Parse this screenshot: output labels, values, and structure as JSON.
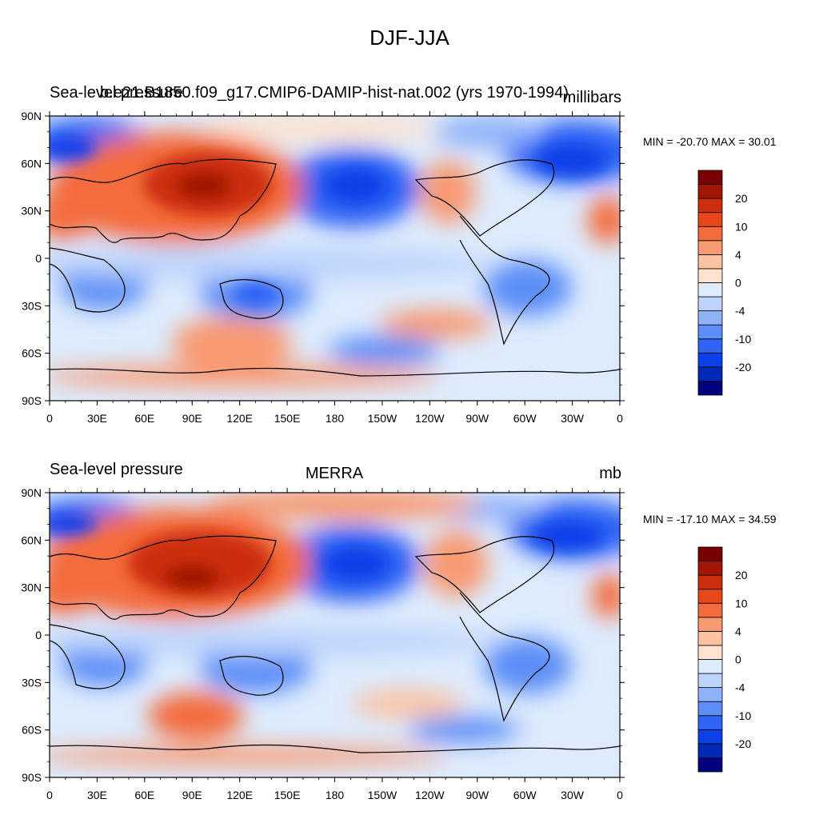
{
  "figure": {
    "title": "DJF-JJA"
  },
  "colorbar": {
    "colors": [
      "#00007f",
      "#0029b8",
      "#0a41e8",
      "#2f64f5",
      "#5b8ef7",
      "#8fb2f9",
      "#bcd3fb",
      "#ddebfd",
      "#fde3d0",
      "#fbc3a3",
      "#f89a72",
      "#f46c3e",
      "#e8461b",
      "#cc2f0e",
      "#a01705",
      "#780000"
    ],
    "tick_labels": [
      "20",
      "10",
      "4",
      "0",
      "-4",
      "-10",
      "-20"
    ]
  },
  "panels": [
    {
      "left_title": "Sea-level pressure",
      "center_title": "b.e21.B1850.f09_g17.CMIP6-DAMIP-hist-nat.002 (yrs 1970-1994)",
      "units": "millibars",
      "minmax": "MIN = -20.70 MAX =  30.01",
      "lat_labels": [
        "90N",
        "60N",
        "30N",
        "0",
        "30S",
        "60S",
        "90S"
      ],
      "lon_labels": [
        "0",
        "30E",
        "60E",
        "90E",
        "120E",
        "150E",
        "180",
        "150W",
        "120W",
        "90W",
        "60W",
        "30W",
        "0"
      ]
    },
    {
      "left_title": "Sea-level pressure",
      "center_title": "MERRA",
      "units": "mb",
      "minmax": "MIN = -17.10 MAX =  34.59",
      "lat_labels": [
        "90N",
        "60N",
        "30N",
        "0",
        "30S",
        "60S",
        "90S"
      ],
      "lon_labels": [
        "0",
        "30E",
        "60E",
        "90E",
        "120E",
        "150E",
        "180",
        "150W",
        "120W",
        "90W",
        "60W",
        "30W",
        "0"
      ]
    }
  ]
}
